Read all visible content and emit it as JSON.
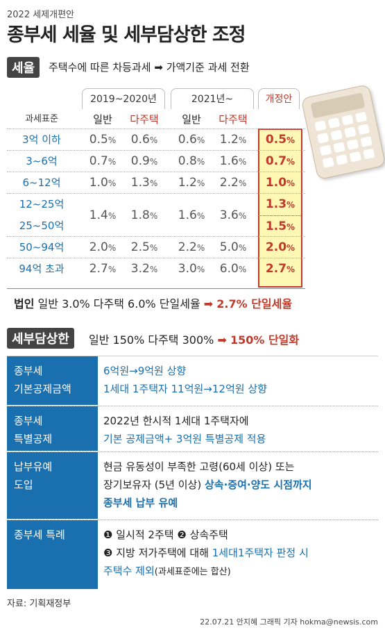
{
  "header": {
    "topline": "2022 세제개편안",
    "title": "종부세 세율 및 세부담상한 조정"
  },
  "section1": {
    "label": "세율",
    "text_before": "주택수에 따른 차등과세",
    "arrow": "➡",
    "text_after": "가액기준 과세 전환"
  },
  "rate_table": {
    "col_label": "과세표준",
    "period1": "2019~2020년",
    "period2": "2021년~",
    "revision": "개정안",
    "general": "일반",
    "multi": "다주택",
    "rows": [
      {
        "label": "3억 이하",
        "p1_general": "0.5",
        "p1_multi": "0.6",
        "p2_general": "0.6",
        "p2_multi": "1.2",
        "revised": "0.5"
      },
      {
        "label": "3~6억",
        "p1_general": "0.7",
        "p1_multi": "0.9",
        "p2_general": "0.8",
        "p2_multi": "1.6",
        "revised": "0.7"
      },
      {
        "label": "6~12억",
        "p1_general": "1.0",
        "p1_multi": "1.3",
        "p2_general": "1.2",
        "p2_multi": "2.2",
        "revised": "1.0"
      },
      {
        "label": "12~25억",
        "revised": "1.3"
      },
      {
        "label": "25~50억",
        "revised": "1.5"
      },
      {
        "label": "50~94억",
        "p1_general": "2.0",
        "p1_multi": "2.5",
        "p2_general": "2.2",
        "p2_multi": "5.0",
        "revised": "2.0"
      },
      {
        "label": "94억 초과",
        "p1_general": "2.7",
        "p1_multi": "3.2",
        "p2_general": "3.0",
        "p2_multi": "6.0",
        "revised": "2.7"
      }
    ],
    "merged_12_50": {
      "p1_general": "1.4",
      "p1_multi": "1.8",
      "p2_general": "1.6",
      "p2_multi": "3.6"
    },
    "unit": "%"
  },
  "corporate": {
    "label": "법인",
    "text": "일반 3.0% 다주택 6.0% 단일세율",
    "arrow": "➡",
    "result": "2.7% 단일세율"
  },
  "section2": {
    "label": "세부담상한",
    "text": "일반 150% 다주택 300%",
    "arrow": "➡",
    "result": "150% 단일화"
  },
  "details": [
    {
      "head_line1": "종부세",
      "head_line2": "기본공제금액",
      "line1": "6억원→9억원 상향",
      "line2": "1세대 1주택자 11억원→12억원 상향"
    },
    {
      "head_line1": "종부세",
      "head_line2": "특별공제",
      "line1": "2022년 한시적 1세대 1주택자에",
      "line2": "기본 공제금액+ 3억원 특별공제 적용"
    },
    {
      "head_line1": "납부유예",
      "head_line2": "도입",
      "line1": "현금 유동성이 부족한 고령(60세 이상) 또는",
      "line2a": "장기보유자 (5년 이상)",
      "line2b": "상속·증여·양도 시점까지",
      "line3": "종부세 납부 유예"
    },
    {
      "head_line1": "종부세 특례",
      "item1_num": "❶",
      "item1": "일시적 2주택",
      "item2_num": "❷",
      "item2": "상속주택",
      "item3_num": "❸",
      "item3a": "지방 저가주택에 대해",
      "item3b": "1세대1주택자 판정 시",
      "item3c": "주택수 제외",
      "item3d": "(과세표준에는 합산)"
    }
  ],
  "footer": {
    "source": "자료: 기획재정부",
    "credit": "22.07.21 안지혜 그래픽 기자 hokma@newsis.com"
  },
  "colors": {
    "accent_blue": "#1a6fae",
    "accent_red": "#c0392b",
    "highlight_yellow": "#fff8b4",
    "label_dark": "#444444"
  }
}
